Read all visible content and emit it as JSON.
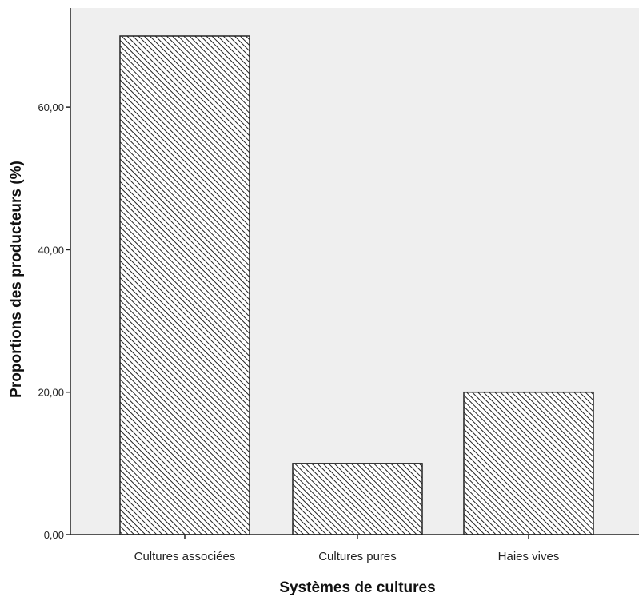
{
  "chart_data": {
    "type": "bar",
    "categories": [
      "Cultures associées",
      "Cultures pures",
      "Haies vives"
    ],
    "values": [
      70,
      10,
      20
    ],
    "xlabel": "Systèmes de cultures",
    "ylabel": "Proportions des producteurs (%)",
    "ylim": [
      0,
      70
    ],
    "yticks": [
      0,
      20,
      40,
      60
    ],
    "ytick_labels": [
      "0,00",
      "20,00",
      "40,00",
      "60,00"
    ],
    "grid": false,
    "legend": "none",
    "colors": {
      "plot_background": "#efefef",
      "bar_fill": "#ffffff",
      "bar_hatch": "#222222",
      "bar_border": "#222222",
      "axis": "#222222"
    }
  }
}
